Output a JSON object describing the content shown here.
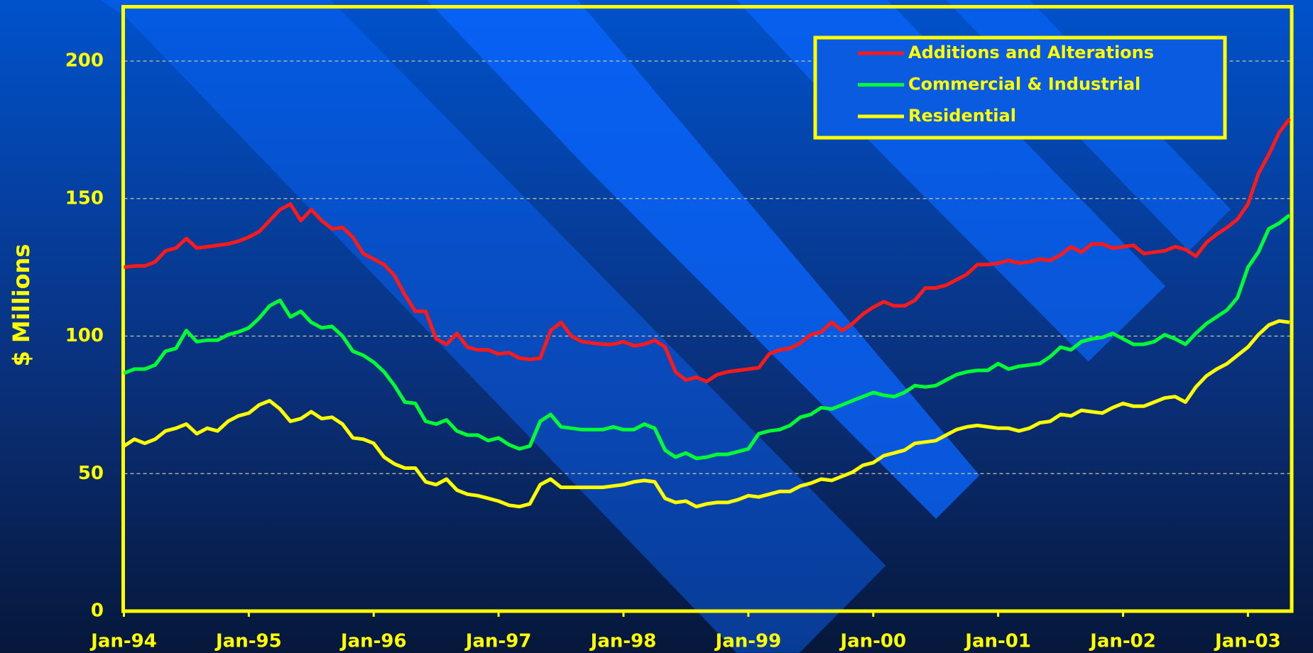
{
  "chart_data": {
    "type": "line",
    "y_label": "$ Millions",
    "categories": [
      "Jan-94",
      null,
      null,
      null,
      null,
      null,
      null,
      null,
      null,
      null,
      null,
      null,
      "Jan-95",
      null,
      null,
      null,
      null,
      null,
      null,
      null,
      null,
      null,
      null,
      null,
      "Jan-96",
      null,
      null,
      null,
      null,
      null,
      null,
      null,
      null,
      null,
      null,
      null,
      "Jan-97",
      null,
      null,
      null,
      null,
      null,
      null,
      null,
      null,
      null,
      null,
      null,
      "Jan-98",
      null,
      null,
      null,
      null,
      null,
      null,
      null,
      null,
      null,
      null,
      null,
      "Jan-99",
      null,
      null,
      null,
      null,
      null,
      null,
      null,
      null,
      null,
      null,
      null,
      "Jan-00",
      null,
      null,
      null,
      null,
      null,
      null,
      null,
      null,
      null,
      null,
      null,
      "Jan-01",
      null,
      null,
      null,
      null,
      null,
      null,
      null,
      null,
      null,
      null,
      null,
      "Jan-02",
      null,
      null,
      null,
      null,
      null,
      null,
      null,
      null,
      null,
      null,
      null,
      "Jan-03",
      null,
      null,
      null,
      null
    ],
    "series": [
      {
        "name": "Additions and Alterations",
        "color": "#ff1a1a",
        "values": [
          125,
          125.5,
          125.5,
          127,
          131,
          132,
          135.5,
          132,
          132.5,
          133,
          133.5,
          134.5,
          136,
          138,
          142,
          146,
          148,
          142,
          146,
          142,
          139,
          139.5,
          136,
          130,
          128,
          126,
          122,
          115,
          109,
          109,
          99,
          97,
          101,
          96,
          95,
          95,
          93.5,
          94,
          92,
          91.5,
          92,
          102,
          105,
          100,
          98,
          97.5,
          97,
          97,
          98,
          96.5,
          97,
          98.5,
          96,
          87,
          84,
          85,
          83.5,
          86,
          87,
          87.5,
          88,
          88.5,
          93.5,
          95,
          95.5,
          97.5,
          100.5,
          101.5,
          105,
          102,
          104.5,
          108,
          110.5,
          112.5,
          111,
          111,
          113,
          117.5,
          117.5,
          118.5,
          120.5,
          122.5,
          126,
          126,
          126.5,
          127.5,
          126.5,
          127,
          128,
          127.5,
          129.5,
          132.5,
          130.5,
          133.5,
          133.5,
          132,
          132.5,
          133,
          130,
          130.5,
          131,
          132.5,
          131.5,
          129,
          134,
          137,
          139.5,
          142.5,
          148,
          159,
          166,
          174,
          179
        ]
      },
      {
        "name": "Commercial & Industrial",
        "color": "#00ff33",
        "values": [
          86.5,
          88,
          88,
          89.5,
          94.5,
          95.5,
          102,
          98,
          98.5,
          98.5,
          100.5,
          101.5,
          103,
          106.5,
          111,
          113,
          107,
          109,
          105,
          103,
          103.5,
          100,
          94.5,
          93,
          90.5,
          87,
          82,
          76,
          75.5,
          69,
          68,
          69.5,
          65.5,
          64,
          64,
          62,
          63,
          60.5,
          59,
          60,
          69,
          71.5,
          67,
          66.5,
          66,
          66,
          66,
          67,
          66,
          66,
          68,
          66.5,
          58.5,
          56,
          57.5,
          55.5,
          56,
          57,
          57,
          58,
          59,
          64.5,
          65.5,
          66,
          67.5,
          70.5,
          71.5,
          74,
          73.5,
          75,
          76.5,
          78,
          79.5,
          78.5,
          78,
          79.5,
          82,
          81.5,
          82,
          84,
          86,
          87,
          87.5,
          87.5,
          90,
          88,
          89,
          89.5,
          90,
          92.5,
          96,
          95,
          98,
          99,
          99.5,
          101,
          99,
          97,
          97,
          98,
          100.5,
          99,
          97,
          101,
          104.5,
          107,
          109.5,
          114,
          125,
          130.5,
          139,
          141,
          144
        ]
      },
      {
        "name": "Residential",
        "color": "#ffff00",
        "values": [
          60,
          62.5,
          61,
          62.5,
          65.5,
          66.5,
          68,
          64.5,
          66.5,
          65.5,
          69,
          71,
          72,
          75,
          76.5,
          73.5,
          69,
          70,
          72.5,
          70,
          70.5,
          68,
          63,
          62.5,
          61,
          56,
          53.5,
          52,
          52,
          47,
          46,
          48,
          44,
          42.5,
          42,
          41,
          40,
          38.5,
          38,
          39,
          46,
          48,
          45,
          45,
          45,
          45,
          45,
          45.5,
          46,
          47,
          47.5,
          47,
          41,
          39.5,
          40,
          38,
          39,
          39.5,
          39.5,
          40.5,
          42,
          41.5,
          42.5,
          43.5,
          43.5,
          45.5,
          46.5,
          48,
          47.5,
          49,
          50.5,
          53,
          54,
          56.5,
          57.5,
          58.5,
          61,
          61.5,
          62,
          64,
          66,
          67,
          67.5,
          67,
          66.5,
          66.5,
          65.5,
          66.5,
          68.5,
          69,
          71.5,
          71,
          73,
          72.5,
          72,
          74,
          75.5,
          74.5,
          74.5,
          76,
          77.5,
          78,
          76,
          81.5,
          85.5,
          88,
          90,
          93,
          96,
          100.5,
          104,
          105.5,
          105
        ]
      }
    ],
    "ylim": [
      0,
      220
    ],
    "yticks": [
      0,
      50,
      100,
      150,
      200
    ],
    "grid": true,
    "legend": "top-right"
  }
}
